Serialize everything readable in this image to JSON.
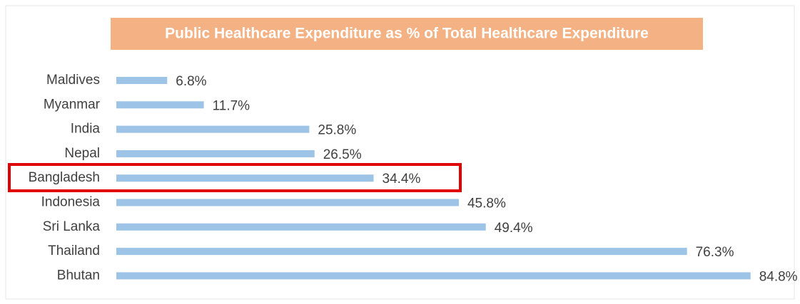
{
  "chart_data": {
    "type": "bar",
    "orientation": "horizontal",
    "title": "Public Healthcare Expenditure as % of Total Healthcare Expenditure",
    "categories": [
      "Maldives",
      "Myanmar",
      "India",
      "Nepal",
      "Bangladesh",
      "Indonesia",
      "Sri Lanka",
      "Thailand",
      "Bhutan"
    ],
    "values": [
      6.8,
      11.7,
      25.8,
      26.5,
      34.4,
      45.8,
      49.4,
      76.3,
      84.8
    ],
    "value_labels": [
      "6.8%",
      "11.7%",
      "25.8%",
      "26.5%",
      "34.4%",
      "45.8%",
      "49.4%",
      "76.3%",
      "84.8%"
    ],
    "color": "#9dc3e6",
    "title_background": "#f4b183"
  }
}
